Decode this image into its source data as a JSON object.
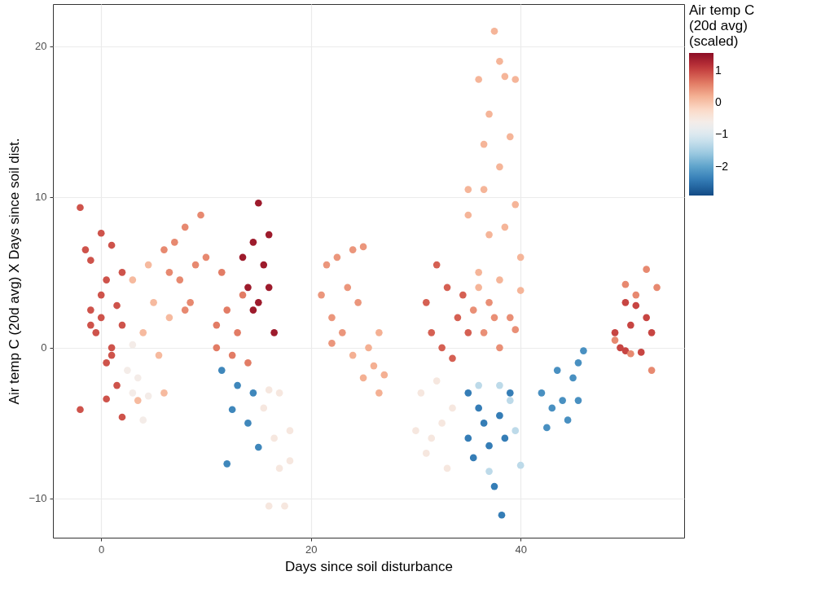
{
  "chart_data": {
    "type": "scatter",
    "xlabel": "Days since soil disturbance",
    "ylabel": "Air temp C (20d avg) X Days since soil dist.",
    "clabel": "Air temp C\n(20d avg)\n(scaled)",
    "xlim": [
      -4.6,
      55.6
    ],
    "xticks": [
      0,
      20,
      40
    ],
    "ylim": [
      -12.6,
      22.8
    ],
    "yticks": [
      -10,
      0,
      10,
      20
    ],
    "clim": [
      -2.9,
      1.55
    ],
    "cticks": [
      -2,
      -1,
      0,
      1
    ],
    "grid": true,
    "x": [
      -2,
      -2,
      -1.5,
      -1,
      -1,
      -0.5,
      0,
      0,
      0.5,
      0.5,
      1,
      1,
      1.5,
      1.5,
      2,
      2,
      -1,
      0.5,
      1,
      2,
      0,
      2.5,
      3,
      3.5,
      4,
      4.5,
      3,
      3,
      4,
      4.5,
      5,
      5.5,
      6,
      6.5,
      3.5,
      6,
      7,
      7.5,
      8,
      8.5,
      9,
      9.5,
      10,
      6.5,
      8,
      11,
      11.5,
      12,
      12.5,
      13,
      13.5,
      14,
      11,
      11.5,
      12,
      12.5,
      13,
      14,
      15,
      14.5,
      13.5,
      14,
      14.5,
      15,
      15,
      15.5,
      16,
      16.5,
      16,
      14.5,
      15.5,
      16,
      16.5,
      17,
      17,
      17.5,
      18,
      16,
      18,
      21,
      21.5,
      22,
      22.5,
      23,
      23.5,
      24,
      25,
      24.5,
      22,
      24,
      25,
      25.5,
      26,
      26.5,
      27,
      26.5,
      30,
      30.5,
      31,
      32,
      32.5,
      33,
      33.5,
      31.5,
      31,
      31.5,
      32,
      32.5,
      33,
      33.5,
      34,
      34.5,
      35,
      37.5,
      38,
      36,
      38.5,
      39.5,
      37,
      39,
      36.5,
      38,
      35,
      36.5,
      39.5,
      35,
      37,
      38.5,
      40,
      36,
      38,
      40,
      36,
      35.5,
      36.5,
      37,
      38,
      39,
      39.5,
      37.5,
      35,
      35,
      35.5,
      36,
      36.5,
      37,
      37.5,
      38,
      38.2,
      39,
      38.5,
      36,
      37,
      38,
      39.5,
      40,
      39,
      42,
      42.5,
      43,
      43.5,
      44,
      44.5,
      45,
      45.5,
      46,
      45.5,
      49,
      49.5,
      50,
      50.5,
      51,
      51.5,
      52,
      52.5,
      50,
      49,
      50,
      51,
      52,
      52.5,
      53,
      50.5
    ],
    "values": [
      9.3,
      -4.1,
      6.5,
      5.8,
      2.5,
      1,
      2,
      3.5,
      -1,
      4.5,
      6.8,
      0,
      -2.5,
      2.8,
      -4.6,
      5,
      1.5,
      -3.4,
      -0.5,
      1.5,
      7.6,
      -1.5,
      -3,
      -2,
      -4.8,
      -3.2,
      0.2,
      4.5,
      1,
      5.5,
      3,
      -0.5,
      -3,
      2,
      -3.5,
      6.5,
      7,
      4.5,
      8,
      3,
      5.5,
      8.8,
      6,
      5,
      2.5,
      0,
      5,
      2.5,
      -0.5,
      1,
      3.5,
      -1,
      1.5,
      -1.5,
      -7.7,
      -4.1,
      -2.5,
      -5,
      -6.6,
      -3,
      6,
      4,
      7,
      9.6,
      3,
      5.5,
      7.5,
      1,
      4,
      2.5,
      -4,
      -10.5,
      -6,
      -3,
      -8,
      -10.5,
      -5.5,
      -2.8,
      -7.5,
      3.5,
      5.5,
      2,
      6,
      1,
      4,
      6.5,
      6.7,
      3,
      0.3,
      -0.5,
      -2,
      0,
      -1.2,
      -3,
      -1.8,
      1,
      -5.5,
      -3,
      -7,
      -2.2,
      -5,
      -8,
      -4,
      -6,
      3,
      1,
      5.5,
      0,
      4,
      -0.7,
      2,
      3.5,
      1,
      21,
      19,
      17.8,
      18,
      17.8,
      15.5,
      14,
      13.5,
      12,
      10.5,
      10.5,
      9.5,
      8.8,
      7.5,
      8,
      6,
      5,
      4.5,
      3.8,
      4,
      2.5,
      1,
      3,
      0,
      2,
      1.2,
      2,
      -3,
      -6,
      -7.3,
      -4,
      -5,
      -6.5,
      -9.2,
      -4.5,
      -11.1,
      -3,
      -6,
      -2.5,
      -8.2,
      -2.5,
      -5.5,
      -7.8,
      -3.5,
      -3,
      -5.3,
      -4,
      -1.5,
      -3.5,
      -4.8,
      -2,
      -1,
      -0.2,
      -3.5,
      1,
      0,
      3,
      1.5,
      2.8,
      -0.3,
      2,
      1,
      -0.2,
      0.5,
      4.2,
      3.5,
      5.2,
      -1.5,
      4,
      -0.4
    ],
    "cvalues": [
      0.9,
      0.9,
      0.9,
      0.9,
      0.9,
      0.9,
      0.9,
      0.9,
      0.9,
      0.9,
      0.9,
      0.9,
      0.9,
      0.9,
      0.9,
      0.9,
      0.9,
      0.9,
      0.9,
      0.9,
      0.9,
      -0.6,
      -0.6,
      -0.6,
      -0.6,
      -0.6,
      -0.6,
      0.1,
      0.1,
      0.1,
      0.1,
      0.1,
      0.1,
      0.1,
      0.1,
      0.5,
      0.5,
      0.5,
      0.5,
      0.5,
      0.5,
      0.5,
      0.5,
      0.5,
      0.5,
      0.6,
      0.6,
      0.6,
      0.6,
      0.6,
      0.6,
      0.6,
      0.6,
      -2.3,
      -2.3,
      -2.3,
      -2.3,
      -2.3,
      -2.3,
      -2.3,
      1.4,
      1.4,
      1.4,
      1.4,
      1.4,
      1.4,
      1.4,
      1.4,
      1.4,
      1.4,
      -0.5,
      -0.5,
      -0.5,
      -0.5,
      -0.5,
      -0.5,
      -0.5,
      -0.5,
      -0.5,
      0.4,
      0.4,
      0.4,
      0.4,
      0.4,
      0.4,
      0.4,
      0.4,
      0.4,
      0.4,
      0.2,
      0.2,
      0.2,
      0.2,
      0.2,
      0.2,
      0.2,
      -0.5,
      -0.5,
      -0.5,
      -0.5,
      -0.5,
      -0.5,
      -0.5,
      -0.5,
      0.8,
      0.8,
      0.8,
      0.8,
      0.8,
      0.8,
      0.8,
      0.8,
      0.8,
      0.15,
      0.15,
      0.15,
      0.15,
      0.15,
      0.15,
      0.15,
      0.15,
      0.15,
      0.15,
      0.15,
      0.15,
      0.15,
      0.15,
      0.15,
      0.15,
      0.15,
      0.15,
      0.15,
      0.15,
      0.45,
      0.45,
      0.45,
      0.45,
      0.45,
      0.45,
      0.45,
      -2.4,
      -2.4,
      -2.4,
      -2.4,
      -2.4,
      -2.4,
      -2.4,
      -2.4,
      -2.4,
      -2.4,
      -2.4,
      -1.3,
      -1.3,
      -1.3,
      -1.3,
      -1.3,
      -1.3,
      -2.2,
      -2.2,
      -2.2,
      -2.2,
      -2.2,
      -2.2,
      -2.2,
      -2.2,
      -2.2,
      -2.2,
      1.0,
      1.0,
      1.0,
      1.0,
      1.0,
      1.0,
      1.0,
      1.0,
      1.0,
      0.5,
      0.5,
      0.5,
      0.5,
      0.5,
      0.5,
      0.5
    ]
  }
}
